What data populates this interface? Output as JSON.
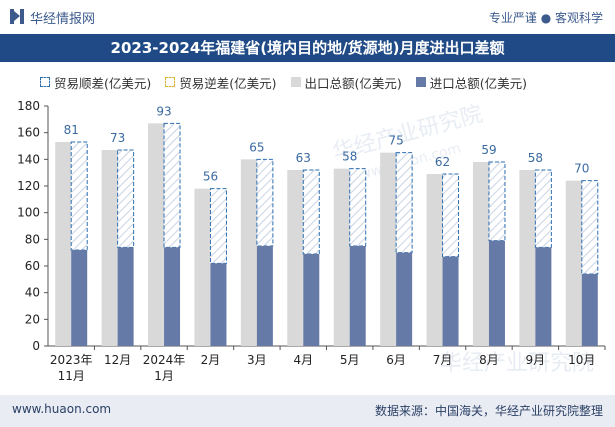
{
  "header": {
    "brand": "华经情报网",
    "slogan": "专业严谨 ● 客观科学",
    "title": "2023-2024年福建省(境内目的地/货源地)月度进出口差额"
  },
  "legend": {
    "surplus": "贸易顺差(亿美元)",
    "deficit": "贸易逆差(亿美元)",
    "total": "出口总额(亿美元)",
    "import": "进口总额(亿美元)"
  },
  "watermarks": [
    "华经产业研究院",
    "www.huaon.com"
  ],
  "footer": {
    "website": "www.huaon.com",
    "source": "数据来源：中国海关，华经产业研究院整理"
  },
  "colors": {
    "title_bg": "#1f4a86",
    "total": "#d9d9d9",
    "import": "#667aa8",
    "surplus_border": "#2f6fb0",
    "label": "#3a6aa0"
  },
  "chart_data": {
    "type": "bar",
    "title": "2023-2024年福建省(境内目的地/货源地)月度进出口差额",
    "categories": [
      "2023年11月",
      "12月",
      "2024年1月",
      "2月",
      "3月",
      "4月",
      "5月",
      "6月",
      "7月",
      "8月",
      "9月",
      "10月"
    ],
    "ylim": [
      0,
      180
    ],
    "yticks": [
      0,
      20,
      40,
      60,
      80,
      100,
      120,
      140,
      160,
      180
    ],
    "series": [
      {
        "name": "出口总额(亿美元)",
        "values": [
          153,
          147,
          167,
          118,
          140,
          132,
          133,
          145,
          129,
          138,
          132,
          124
        ]
      },
      {
        "name": "进口总额(亿美元)",
        "values": [
          72,
          74,
          74,
          62,
          75,
          69,
          75,
          70,
          67,
          79,
          74,
          54
        ]
      },
      {
        "name": "贸易顺差(亿美元)",
        "values": [
          81,
          73,
          93,
          56,
          65,
          63,
          58,
          75,
          62,
          59,
          58,
          70
        ]
      }
    ],
    "data_labels": [
      "81",
      "73",
      "93",
      "56",
      "65",
      "63",
      "58",
      "75",
      "62",
      "59",
      "58",
      "70"
    ]
  }
}
